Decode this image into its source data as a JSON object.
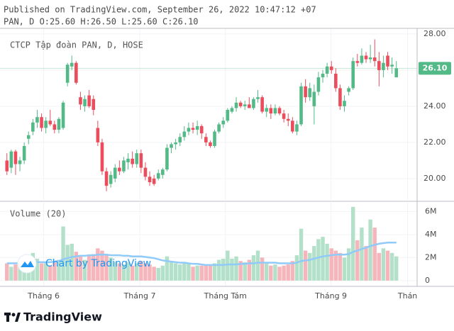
{
  "header": {
    "line1": "Published on TradingView.com, September 26, 2022 10:47:12 +07",
    "line2": "PAN, D O:25.60 H:26.50 L:25.60 C:26.10"
  },
  "chart_data": {
    "type": "candlestick",
    "title": "CTCP Tập đoàn PAN, D, HOSE",
    "open": [
      21.0,
      20.6,
      21.5,
      20.8,
      21.0,
      22.2,
      22.6,
      23.1,
      23.4,
      22.8,
      23.2,
      23.0,
      22.7,
      22.8,
      25.3,
      26.2,
      26.4,
      24.5,
      24.0,
      24.6,
      24.4,
      22.8,
      22.0,
      20.4,
      19.7,
      20.0,
      20.6,
      20.4,
      20.9,
      21.1,
      20.8,
      21.4,
      20.6,
      20.1,
      20.0,
      20.0,
      20.2,
      20.5,
      21.7,
      21.9,
      22.0,
      22.3,
      22.6,
      22.8,
      22.7,
      22.9,
      22.3,
      22.0,
      21.8,
      22.6,
      23.0,
      23.2,
      23.7,
      23.9,
      24.2,
      24.0,
      24.1,
      23.9,
      24.4,
      24.5,
      23.7,
      23.9,
      23.6,
      23.9,
      23.6,
      23.3,
      23.2,
      22.6,
      23.0,
      25.1,
      24.5,
      24.0,
      24.8,
      25.6,
      25.8,
      26.2,
      25.8,
      25.0,
      24.0,
      24.8,
      25.0,
      26.5,
      26.4,
      26.8,
      26.6,
      26.7,
      26.5,
      26.0,
      26.8,
      26.2,
      25.6
    ],
    "high": [
      21.4,
      21.6,
      21.6,
      21.2,
      22.0,
      22.6,
      23.3,
      23.8,
      23.6,
      23.4,
      23.8,
      23.2,
      23.4,
      24.3,
      26.4,
      26.8,
      26.5,
      24.8,
      24.6,
      24.9,
      24.6,
      23.2,
      22.2,
      20.6,
      20.4,
      20.8,
      21.0,
      21.2,
      21.4,
      21.5,
      21.6,
      21.6,
      20.9,
      20.4,
      20.2,
      20.5,
      20.6,
      21.9,
      22.0,
      22.2,
      22.5,
      22.9,
      23.1,
      23.1,
      23.2,
      23.0,
      22.5,
      22.1,
      22.7,
      23.1,
      23.4,
      23.9,
      24.0,
      24.5,
      24.3,
      24.3,
      24.5,
      24.5,
      24.9,
      24.6,
      24.1,
      24.1,
      24.1,
      24.0,
      23.8,
      23.6,
      23.4,
      23.2,
      25.3,
      25.5,
      25.3,
      25.2,
      25.9,
      26.0,
      26.4,
      26.5,
      26.1,
      25.2,
      24.6,
      25.1,
      26.7,
      26.9,
      27.2,
      27.0,
      27.4,
      27.7,
      27.0,
      26.8,
      27.0,
      26.7,
      26.5
    ],
    "low": [
      20.2,
      20.3,
      20.2,
      20.4,
      20.8,
      21.9,
      22.4,
      22.8,
      22.6,
      22.5,
      22.9,
      22.5,
      22.5,
      22.7,
      25.1,
      26.0,
      25.2,
      23.8,
      23.7,
      23.9,
      23.5,
      21.8,
      20.2,
      19.3,
      19.5,
      19.8,
      20.2,
      20.3,
      20.5,
      20.6,
      20.6,
      20.3,
      19.9,
      19.6,
      19.6,
      19.9,
      20.0,
      20.4,
      21.4,
      21.6,
      21.8,
      22.1,
      22.4,
      22.5,
      22.4,
      22.2,
      21.8,
      21.7,
      21.7,
      22.5,
      22.8,
      23.1,
      23.6,
      23.7,
      23.9,
      23.8,
      23.9,
      23.8,
      24.2,
      23.6,
      23.4,
      23.3,
      23.5,
      23.5,
      23.1,
      22.9,
      22.5,
      22.4,
      22.9,
      24.2,
      24.3,
      23.0,
      24.6,
      25.3,
      25.6,
      25.8,
      24.8,
      23.8,
      23.7,
      24.6,
      24.9,
      26.2,
      26.3,
      26.4,
      26.4,
      26.2,
      25.1,
      25.6,
      26.0,
      25.8,
      25.6
    ],
    "close": [
      20.4,
      21.5,
      20.8,
      21.0,
      21.8,
      22.4,
      23.1,
      23.4,
      22.8,
      23.2,
      23.0,
      22.7,
      23.3,
      24.2,
      26.3,
      26.4,
      25.3,
      24.1,
      24.4,
      24.0,
      23.8,
      22.0,
      20.4,
      19.6,
      20.2,
      20.6,
      20.4,
      21.0,
      21.1,
      20.8,
      21.4,
      20.6,
      20.1,
      19.8,
      19.7,
      20.3,
      20.5,
      21.7,
      21.9,
      22.0,
      22.3,
      22.6,
      22.8,
      22.7,
      22.9,
      22.5,
      22.0,
      21.8,
      22.6,
      23.0,
      23.2,
      23.8,
      23.9,
      24.2,
      24.0,
      24.1,
      23.9,
      24.4,
      24.5,
      23.7,
      23.9,
      23.6,
      23.9,
      23.6,
      23.3,
      23.2,
      22.6,
      23.0,
      25.1,
      24.5,
      25.0,
      24.8,
      25.6,
      25.8,
      26.2,
      26.0,
      25.0,
      24.0,
      24.3,
      25.0,
      26.5,
      26.4,
      26.8,
      26.6,
      26.7,
      26.5,
      26.0,
      26.4,
      26.2,
      26.3,
      26.1
    ],
    "up_color": "#53b987",
    "down_color": "#eb4d5c",
    "xlim": [
      -1.6,
      94.8
    ],
    "xticks": [
      {
        "value": 8.5,
        "label": "Tháng 6"
      },
      {
        "value": 30.7,
        "label": "Tháng 7"
      },
      {
        "value": 50.5,
        "label": "Tháng Tám"
      },
      {
        "value": 74.9,
        "label": "Tháng 9"
      },
      {
        "value": 92.6,
        "label": "Thán"
      }
    ],
    "ylim": [
      18.82,
      28.31
    ],
    "yticks": [
      {
        "value": 20,
        "label": "20.00"
      },
      {
        "value": 22,
        "label": "22.00"
      },
      {
        "value": 24,
        "label": "24.00"
      },
      {
        "value": 26,
        "label": "26.00"
      },
      {
        "value": 28,
        "label": "28.00"
      }
    ],
    "grid": true,
    "last_price": 26.1,
    "last_price_label": "26.10",
    "last_price_color": "#53b987",
    "volume": {
      "title": "Volume (20)",
      "values": [
        1.5,
        1.2,
        1.4,
        1.3,
        1.8,
        2.0,
        2.4,
        1.9,
        1.5,
        1.6,
        1.3,
        1.6,
        1.8,
        4.7,
        3.1,
        3.2,
        2.5,
        2.2,
        1.8,
        2.2,
        2.3,
        2.8,
        2.6,
        2.2,
        2.0,
        1.6,
        1.5,
        1.4,
        1.6,
        1.3,
        1.5,
        1.7,
        1.5,
        1.4,
        1.2,
        1.1,
        1.3,
        2.1,
        1.7,
        1.5,
        1.4,
        1.6,
        1.5,
        1.2,
        1.3,
        1.3,
        1.4,
        1.3,
        1.5,
        1.8,
        1.9,
        2.6,
        1.9,
        2.1,
        1.7,
        1.6,
        1.8,
        2.2,
        2.6,
        2.0,
        1.5,
        1.3,
        1.4,
        1.2,
        1.3,
        1.4,
        1.7,
        2.2,
        4.5,
        2.6,
        2.4,
        3.0,
        3.6,
        3.8,
        3.2,
        2.8,
        2.6,
        2.4,
        2.0,
        2.8,
        6.4,
        3.5,
        4.6,
        3.0,
        5.3,
        4.6,
        2.4,
        2.8,
        2.6,
        2.4,
        2.1
      ],
      "ma": [
        1.5,
        1.5,
        1.5,
        1.5,
        1.5,
        1.55,
        1.6,
        1.6,
        1.6,
        1.6,
        1.6,
        1.65,
        1.7,
        1.85,
        1.95,
        2.05,
        2.1,
        2.15,
        2.15,
        2.2,
        2.2,
        2.25,
        2.25,
        2.25,
        2.2,
        2.2,
        2.2,
        2.15,
        2.15,
        2.1,
        2.1,
        2.1,
        2.05,
        2.0,
        1.95,
        1.85,
        1.75,
        1.7,
        1.65,
        1.6,
        1.55,
        1.55,
        1.5,
        1.45,
        1.45,
        1.4,
        1.35,
        1.35,
        1.35,
        1.35,
        1.35,
        1.4,
        1.4,
        1.4,
        1.45,
        1.45,
        1.5,
        1.5,
        1.55,
        1.55,
        1.55,
        1.55,
        1.55,
        1.5,
        1.5,
        1.5,
        1.5,
        1.55,
        1.7,
        1.75,
        1.8,
        1.9,
        2.0,
        2.1,
        2.15,
        2.2,
        2.25,
        2.25,
        2.25,
        2.3,
        2.5,
        2.6,
        2.75,
        2.85,
        3.0,
        3.1,
        3.2,
        3.25,
        3.3,
        3.3,
        3.3
      ],
      "ylim": [
        -0.5,
        6.76
      ],
      "yticks": [
        0,
        {
          "value": 2,
          "label": "2M"
        },
        {
          "value": 4,
          "label": "4M"
        },
        {
          "value": 6,
          "label": "6M"
        }
      ],
      "up_color": "#b3e0c9",
      "down_color": "#f5b5bb",
      "ma_color": "#90caf9"
    }
  },
  "watermark": "Chart by TradingView",
  "footer": "TradingView"
}
